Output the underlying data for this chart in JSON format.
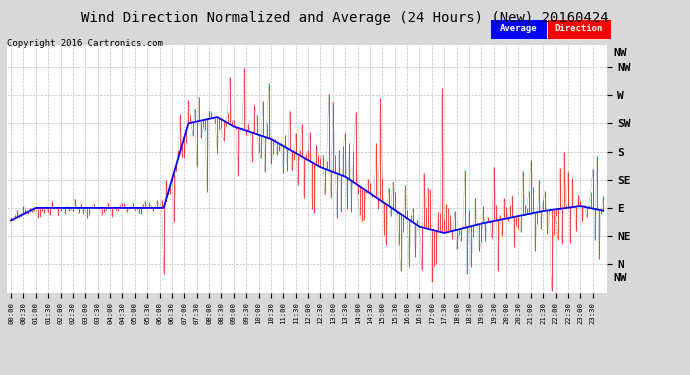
{
  "title": "Wind Direction Normalized and Average (24 Hours) (New) 20160424",
  "copyright": "Copyright 2016 Cartronics.com",
  "bg_color": "#d8d8d8",
  "plot_bg_color": "#ffffff",
  "grid_color": "#999999",
  "title_fontsize": 10,
  "yticks": [
    315,
    270,
    225,
    180,
    135,
    90,
    45,
    0
  ],
  "ytick_labels": [
    "NW",
    "W",
    "SW",
    "S",
    "SE",
    "E",
    "NE",
    "N"
  ],
  "ytop_label": "NW",
  "ytop_val": 337,
  "ybottom_label": "NW",
  "ybottom_val": -22,
  "ylim": [
    -45,
    350
  ],
  "num_points": 288,
  "seed": 42,
  "avg_color": "#0000ff",
  "dir_color": "#ff0000",
  "dark_color": "#333333"
}
